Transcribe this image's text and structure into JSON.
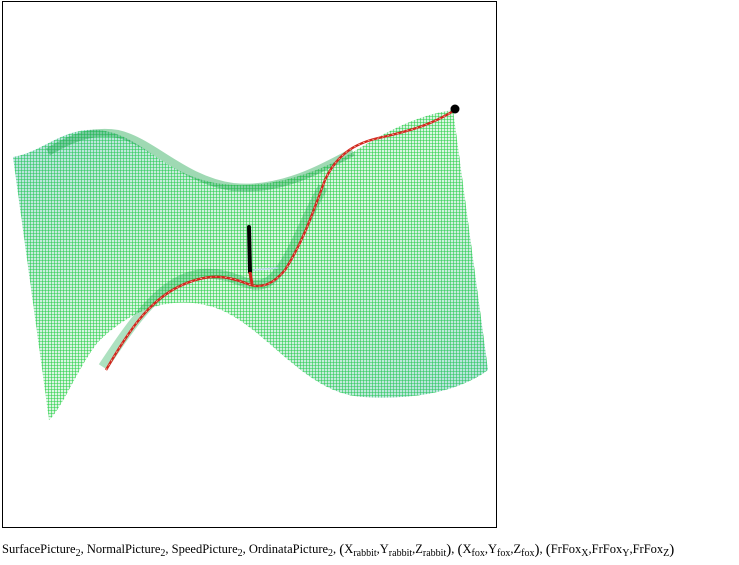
{
  "plot": {
    "surface_color": "#19c04a",
    "surface_line_color": "#22d23c",
    "surface_shadow_color": "#1aa0a0",
    "path_color": "#d2261e",
    "marker_color": "#000000"
  },
  "caption": {
    "surface_picture": "SurfacePicture",
    "normal_picture": "NormalPicture",
    "speed_picture": "SpeedPicture",
    "ordinata_picture": "OrdinataPicture",
    "subscript_2": "2",
    "sep": ",",
    "open_paren": "(",
    "close_paren": ")",
    "x": "X",
    "y": "Y",
    "z": "Z",
    "rabbit": "rabbit",
    "fox": "fox",
    "frfox": "FrFox",
    "sub_x": "X",
    "sub_y": "Y",
    "sub_z": "Z"
  }
}
